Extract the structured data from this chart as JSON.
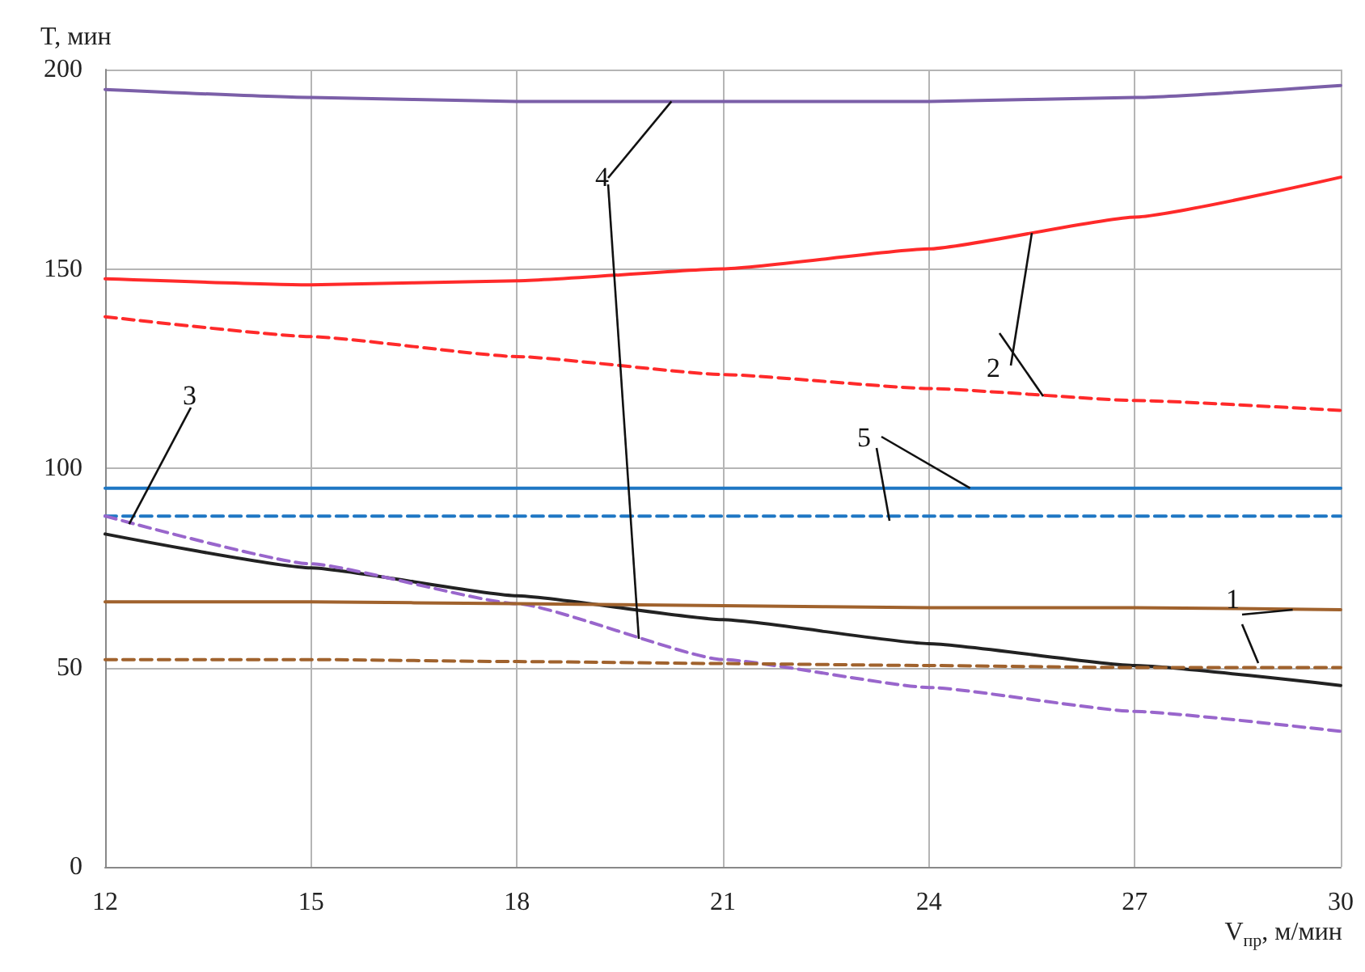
{
  "chart_data": {
    "type": "line",
    "xlabel": "V$_{пр}$, м/мин",
    "ylabel": "T, мин",
    "x": [
      12,
      15,
      18,
      21,
      24,
      27,
      30
    ],
    "series": [
      {
        "color": "#7b5fa8",
        "line_style": "solid",
        "values": [
          195,
          193,
          192,
          192,
          192,
          193,
          196
        ]
      },
      {
        "color": "#ff2a2a",
        "line_style": "solid",
        "values": [
          147.5,
          146,
          147,
          150,
          155,
          163,
          173
        ]
      },
      {
        "color": "#ff2a2a",
        "line_style": "dashed",
        "values": [
          138,
          133,
          128,
          123.5,
          120,
          117,
          114.5
        ]
      },
      {
        "color": "#1f77c4",
        "line_style": "solid",
        "values": [
          95,
          95,
          95,
          95,
          95,
          95,
          95
        ]
      },
      {
        "color": "#1f77c4",
        "line_style": "dashed",
        "values": [
          88,
          88,
          88,
          88,
          88,
          88,
          88
        ]
      },
      {
        "color": "#222222",
        "line_style": "solid",
        "values": [
          83.5,
          75,
          68,
          62,
          56,
          50.5,
          45.5
        ]
      },
      {
        "color": "#9966cc",
        "line_style": "dashed",
        "values": [
          88,
          76,
          66,
          52,
          45,
          39,
          34
        ]
      },
      {
        "color": "#a0622d",
        "line_style": "solid",
        "values": [
          66.5,
          66.5,
          66,
          65.5,
          65,
          65,
          64.5
        ]
      },
      {
        "color": "#a0622d",
        "line_style": "dashed",
        "values": [
          52,
          52,
          51.5,
          51,
          50.5,
          50,
          50
        ]
      }
    ],
    "annotations": [
      {
        "text": "1",
        "x": 29.3,
        "y": 64.5
      },
      {
        "text": "2",
        "x": 25.5,
        "y": 159
      },
      {
        "text": "3",
        "x": 12.35,
        "y": 86
      },
      {
        "text": "4",
        "x": 20.25,
        "y": 192
      },
      {
        "text": "5",
        "x": 24.6,
        "y": 95
      }
    ],
    "xlim": [
      12,
      30
    ],
    "xticks": [
      12,
      15,
      18,
      21,
      24,
      27,
      30
    ],
    "ylim": [
      0,
      200
    ],
    "yticks": [
      0,
      50,
      100,
      150,
      200
    ],
    "grid": true,
    "marker": "none"
  }
}
